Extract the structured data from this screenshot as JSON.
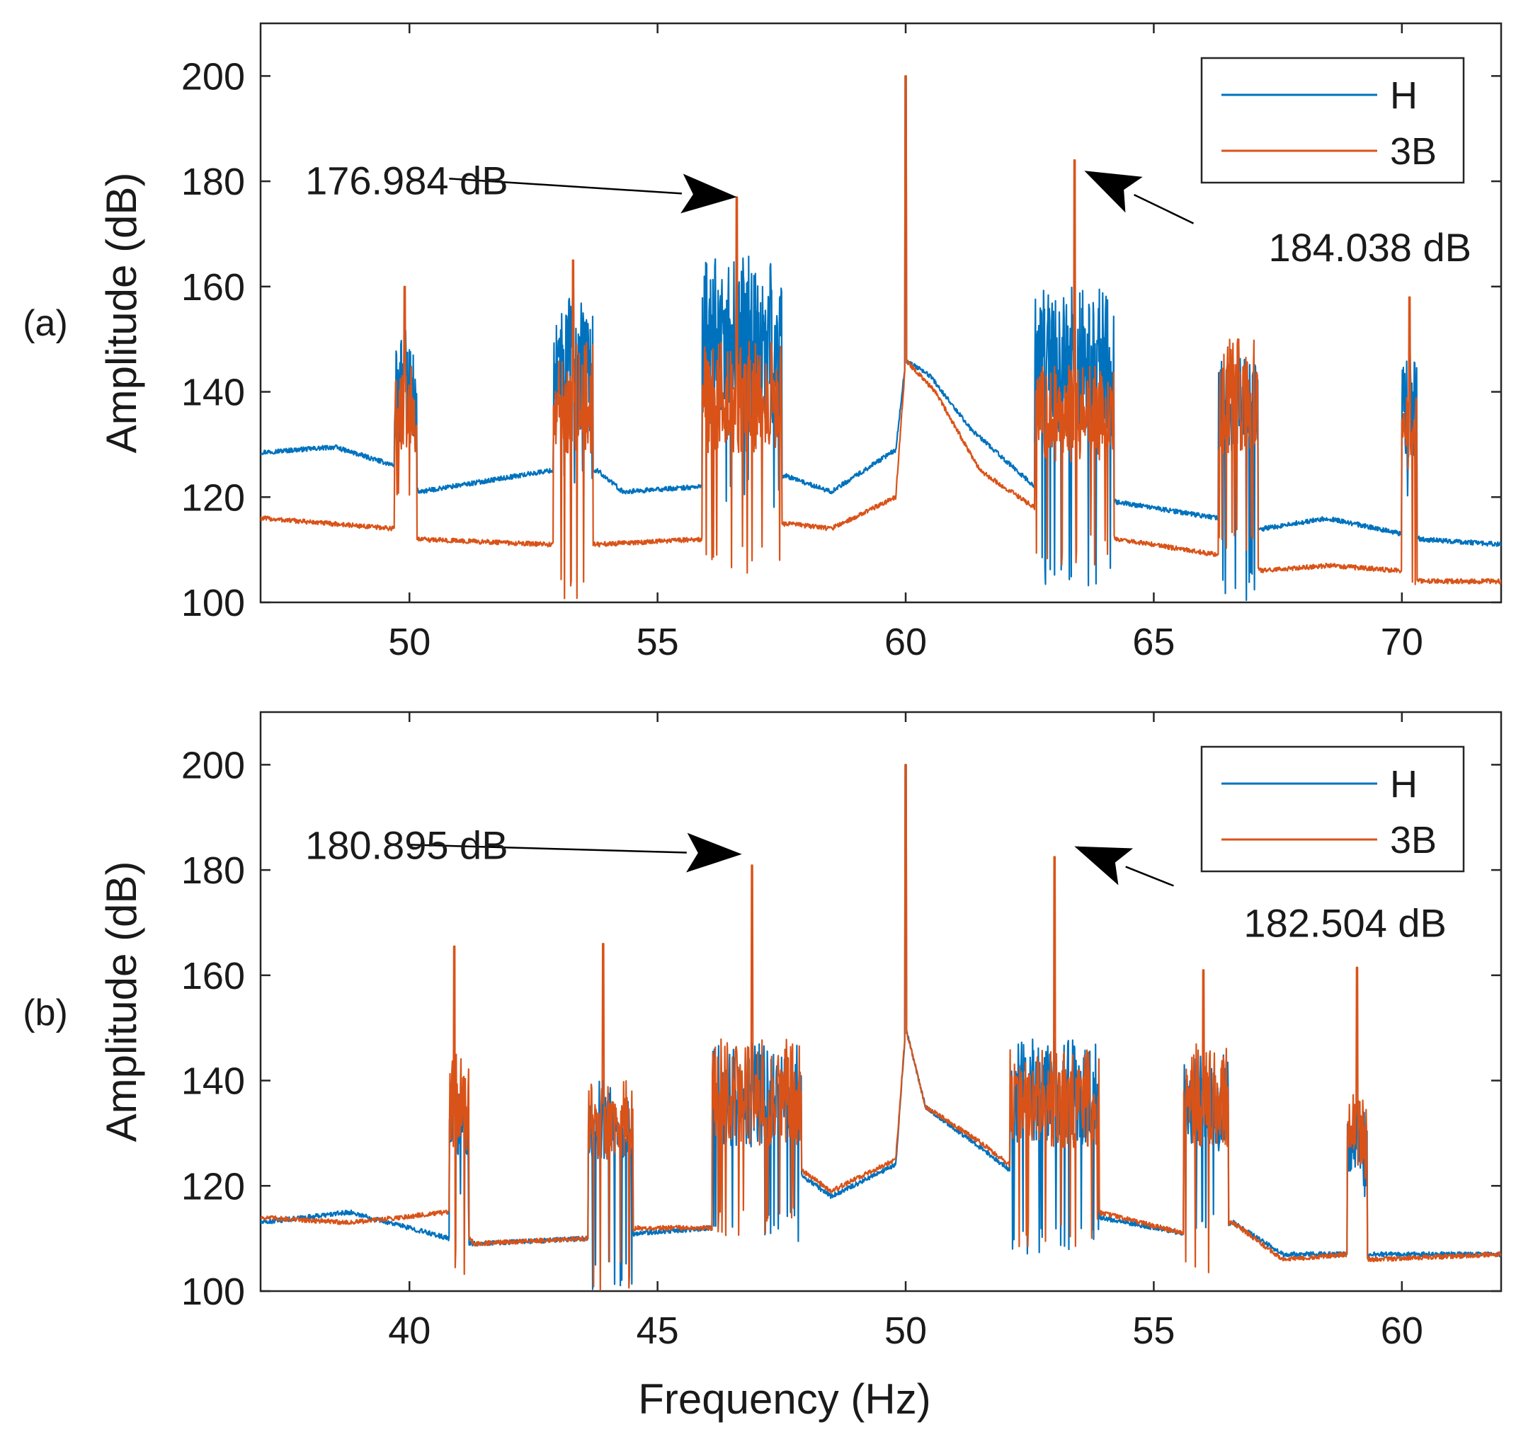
{
  "figure": {
    "x_axis_title": "Frequency (Hz)"
  },
  "chart_data": [
    {
      "type": "line",
      "panel_label": "(a)",
      "ylabel": "Amplitude (dB)",
      "xlabel": "",
      "xlim": [
        47,
        72
      ],
      "ylim": [
        100,
        210
      ],
      "xticks": [
        50,
        55,
        60,
        65,
        70
      ],
      "yticks": [
        100,
        120,
        140,
        160,
        180,
        200
      ],
      "legend_position": "top-right",
      "series": [
        {
          "name": "H",
          "color": "#0072BD"
        },
        {
          "name": "3B",
          "color": "#D95319"
        }
      ],
      "bands": [
        {
          "range": [
            49.7,
            50.15
          ],
          "peak_x": 49.9,
          "peak_3B": 160,
          "H_high": 152,
          "H_low": 130,
          "B_high": 145,
          "B_low": 118
        },
        {
          "range": [
            52.9,
            53.7
          ],
          "peak_x": 53.3,
          "peak_3B": 165,
          "H_high": 159,
          "H_low": 120,
          "B_high": 150,
          "B_low": 100
        },
        {
          "range": [
            55.9,
            57.5
          ],
          "peak_x": 56.6,
          "peak_3B": 176.984,
          "H_high": 166,
          "H_low": 118,
          "B_high": 150,
          "B_low": 105
        },
        {
          "range": [
            62.6,
            64.2
          ],
          "peak_x": 63.4,
          "peak_3B": 184.038,
          "H_high": 160,
          "H_low": 103,
          "B_high": 145,
          "B_low": 107
        },
        {
          "range": [
            66.3,
            67.1
          ],
          "peak_x": 66.7,
          "peak_3B": 150,
          "H_high": 149,
          "H_low": 100,
          "B_high": 150,
          "B_low": 108
        },
        {
          "range": [
            70.0,
            70.3
          ],
          "peak_x": 70.15,
          "peak_3B": 158,
          "H_high": 148,
          "H_low": 115,
          "B_high": 140,
          "B_low": 102
        }
      ],
      "baseline_H": [
        [
          47,
          128.5
        ],
        [
          48.5,
          129.5
        ],
        [
          49.7,
          126
        ],
        [
          50.2,
          121
        ],
        [
          52.8,
          125
        ],
        [
          53.8,
          125
        ],
        [
          54.3,
          121
        ],
        [
          55.9,
          122
        ],
        [
          57.6,
          124
        ],
        [
          58.5,
          121
        ],
        [
          59.8,
          129
        ],
        [
          60.0,
          146
        ],
        [
          60.5,
          143
        ],
        [
          61.3,
          133
        ],
        [
          62.6,
          122
        ],
        [
          64.3,
          119
        ],
        [
          66.3,
          116
        ],
        [
          67.2,
          114
        ],
        [
          68.5,
          116
        ],
        [
          70.0,
          113
        ],
        [
          70.4,
          112
        ],
        [
          72,
          111
        ]
      ],
      "baseline_3B": [
        [
          47,
          116
        ],
        [
          49.7,
          114
        ],
        [
          50.2,
          112
        ],
        [
          52.8,
          111
        ],
        [
          53.8,
          111
        ],
        [
          55.9,
          112
        ],
        [
          57.6,
          115
        ],
        [
          58.5,
          114
        ],
        [
          59.8,
          120
        ],
        [
          60.0,
          146
        ],
        [
          60.6,
          140
        ],
        [
          61.5,
          125
        ],
        [
          62.6,
          118
        ],
        [
          64.3,
          112
        ],
        [
          66.3,
          109
        ],
        [
          67.2,
          106
        ],
        [
          68.5,
          107
        ],
        [
          70.0,
          106
        ],
        [
          70.4,
          104
        ],
        [
          72,
          104
        ]
      ],
      "center_peak": {
        "x": 60.0,
        "value": 200
      },
      "annotations": [
        {
          "text": "176.984 dB",
          "target_x": 56.6,
          "target_y": 177,
          "text_x": 47.9,
          "text_y": 180.2,
          "anchor": "start",
          "tail_x": 50.8,
          "tail_y": 180.5
        },
        {
          "text": "184.038 dB",
          "target_x": 63.6,
          "target_y": 182,
          "text_x": 71.4,
          "text_y": 167.5,
          "anchor": "end",
          "tail_x": 65.8,
          "tail_y": 172
        }
      ]
    },
    {
      "type": "line",
      "panel_label": "(b)",
      "ylabel": "Amplitude (dB)",
      "xlabel": "Frequency (Hz)",
      "xlim": [
        37,
        62
      ],
      "ylim": [
        100,
        210
      ],
      "xticks": [
        40,
        45,
        50,
        55,
        60
      ],
      "yticks": [
        100,
        120,
        140,
        160,
        180,
        200
      ],
      "legend_position": "top-right",
      "series": [
        {
          "name": "H",
          "color": "#0072BD"
        },
        {
          "name": "3B",
          "color": "#D95319"
        }
      ],
      "bands": [
        {
          "range": [
            40.8,
            41.2
          ],
          "peak_x": 40.9,
          "peak_3B": 165.5,
          "H_high": 140,
          "H_low": 115,
          "B_high": 145,
          "B_low": 103
        },
        {
          "range": [
            43.6,
            44.5
          ],
          "peak_x": 43.9,
          "peak_3B": 166,
          "H_high": 140,
          "H_low": 100,
          "B_high": 140,
          "B_low": 100
        },
        {
          "range": [
            46.1,
            47.9
          ],
          "peak_x": 46.9,
          "peak_3B": 180.895,
          "H_high": 147,
          "H_low": 109,
          "B_high": 148,
          "B_low": 110
        },
        {
          "range": [
            52.1,
            53.9
          ],
          "peak_x": 53.0,
          "peak_3B": 182.504,
          "H_high": 148,
          "H_low": 106,
          "B_high": 146,
          "B_low": 108
        },
        {
          "range": [
            55.6,
            56.5
          ],
          "peak_x": 56.0,
          "peak_3B": 161,
          "H_high": 145,
          "H_low": 110,
          "B_high": 147,
          "B_low": 101
        },
        {
          "range": [
            58.9,
            59.3
          ],
          "peak_x": 59.1,
          "peak_3B": 161.5,
          "H_high": 136,
          "H_low": 118,
          "B_high": 138,
          "B_low": 118
        }
      ],
      "baseline_H": [
        [
          37,
          113
        ],
        [
          38.8,
          115
        ],
        [
          40.8,
          110
        ],
        [
          41.3,
          109
        ],
        [
          43.6,
          110
        ],
        [
          44.6,
          111
        ],
        [
          46.1,
          112
        ],
        [
          47.9,
          122
        ],
        [
          48.5,
          118
        ],
        [
          49.8,
          124
        ],
        [
          50.0,
          150
        ],
        [
          50.4,
          135
        ],
        [
          51.4,
          128
        ],
        [
          52.1,
          123
        ],
        [
          53.9,
          114
        ],
        [
          55.6,
          111
        ],
        [
          56.6,
          113
        ],
        [
          57.6,
          107
        ],
        [
          58.9,
          107
        ],
        [
          59.4,
          107
        ],
        [
          62,
          107
        ]
      ],
      "baseline_3B": [
        [
          37,
          114
        ],
        [
          38.8,
          113
        ],
        [
          40.8,
          115
        ],
        [
          41.3,
          109
        ],
        [
          43.6,
          110
        ],
        [
          44.6,
          112
        ],
        [
          46.1,
          112
        ],
        [
          47.9,
          123
        ],
        [
          48.5,
          119
        ],
        [
          49.8,
          125
        ],
        [
          50.0,
          150
        ],
        [
          50.4,
          135
        ],
        [
          51.4,
          129
        ],
        [
          52.1,
          124
        ],
        [
          53.9,
          115
        ],
        [
          55.6,
          111
        ],
        [
          56.6,
          113
        ],
        [
          57.6,
          106
        ],
        [
          58.9,
          107
        ],
        [
          59.4,
          106
        ],
        [
          62,
          107
        ]
      ],
      "center_peak": {
        "x": 50.0,
        "value": 200
      },
      "annotations": [
        {
          "text": "180.895 dB",
          "target_x": 46.7,
          "target_y": 183,
          "text_x": 37.9,
          "text_y": 184.8,
          "anchor": "start",
          "tail_x": 40.0,
          "tail_y": 184.8
        },
        {
          "text": "182.504 dB",
          "target_x": 53.4,
          "target_y": 184.5,
          "text_x": 60.9,
          "text_y": 170,
          "anchor": "end",
          "tail_x": 55.4,
          "tail_y": 177
        }
      ]
    }
  ]
}
